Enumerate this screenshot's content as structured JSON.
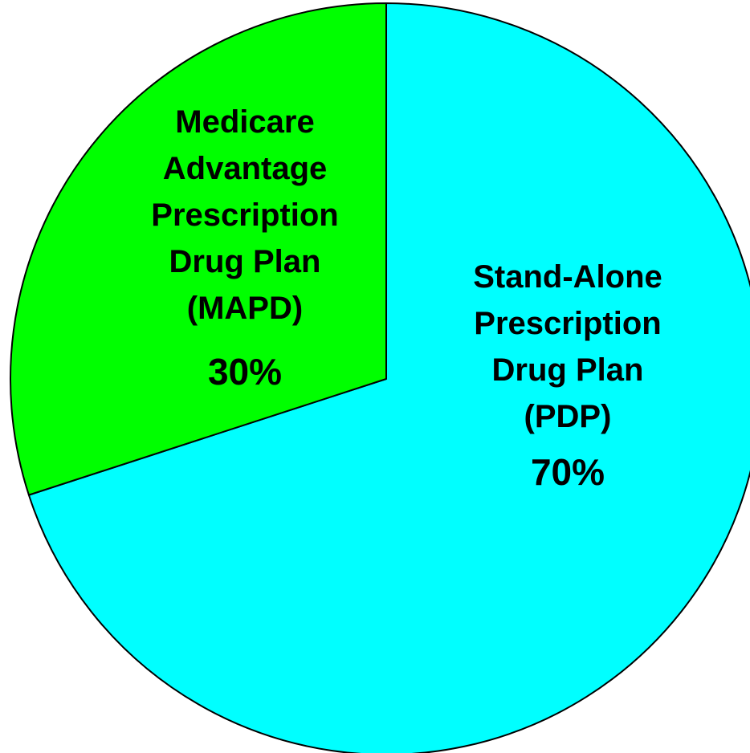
{
  "chart_data": {
    "type": "pie",
    "slices": [
      {
        "label_lines": [
          "Stand-Alone",
          "Prescription",
          "Drug Plan",
          "(PDP)"
        ],
        "value": 70,
        "value_label": "70%",
        "color": "#00FFFF"
      },
      {
        "label_lines": [
          "Medicare",
          "Advantage",
          "Prescription",
          "Drug Plan",
          "(MAPD)"
        ],
        "value": 30,
        "value_label": "30%",
        "color": "#00FF00"
      }
    ],
    "start": "12 o'clock, clockwise",
    "legend": "none",
    "outline_color": "#000000"
  }
}
